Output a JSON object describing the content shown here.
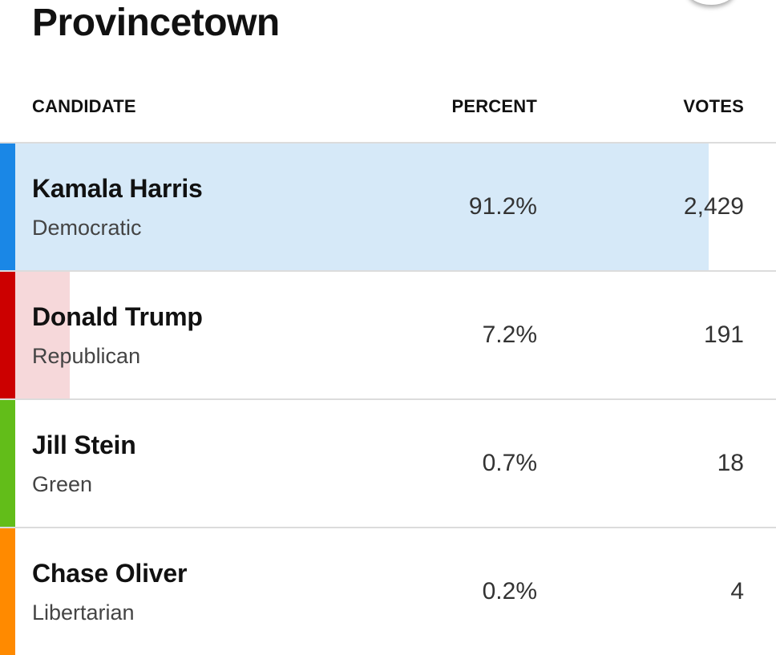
{
  "page": {
    "title": "Provincetown"
  },
  "table": {
    "headers": {
      "candidate": "CANDIDATE",
      "percent": "PERCENT",
      "votes": "VOTES"
    },
    "rows": [
      {
        "name": "Kamala Harris",
        "party": "Democratic",
        "percent": "91.2%",
        "votes": "2,429",
        "share": 0.912,
        "stripe_color": "#1a87e6",
        "fill_color": "#d6e9f8"
      },
      {
        "name": "Donald Trump",
        "party": "Republican",
        "percent": "7.2%",
        "votes": "191",
        "share": 0.072,
        "stripe_color": "#cc0000",
        "fill_color": "#f6d8da"
      },
      {
        "name": "Jill Stein",
        "party": "Green",
        "percent": "0.7%",
        "votes": "18",
        "share": 0.007,
        "stripe_color": "#62bd19",
        "fill_color": "#ffffff"
      },
      {
        "name": "Chase Oliver",
        "party": "Libertarian",
        "percent": "0.2%",
        "votes": "4",
        "share": 0.002,
        "stripe_color": "#ff8a00",
        "fill_color": "#ffffff"
      }
    ]
  }
}
